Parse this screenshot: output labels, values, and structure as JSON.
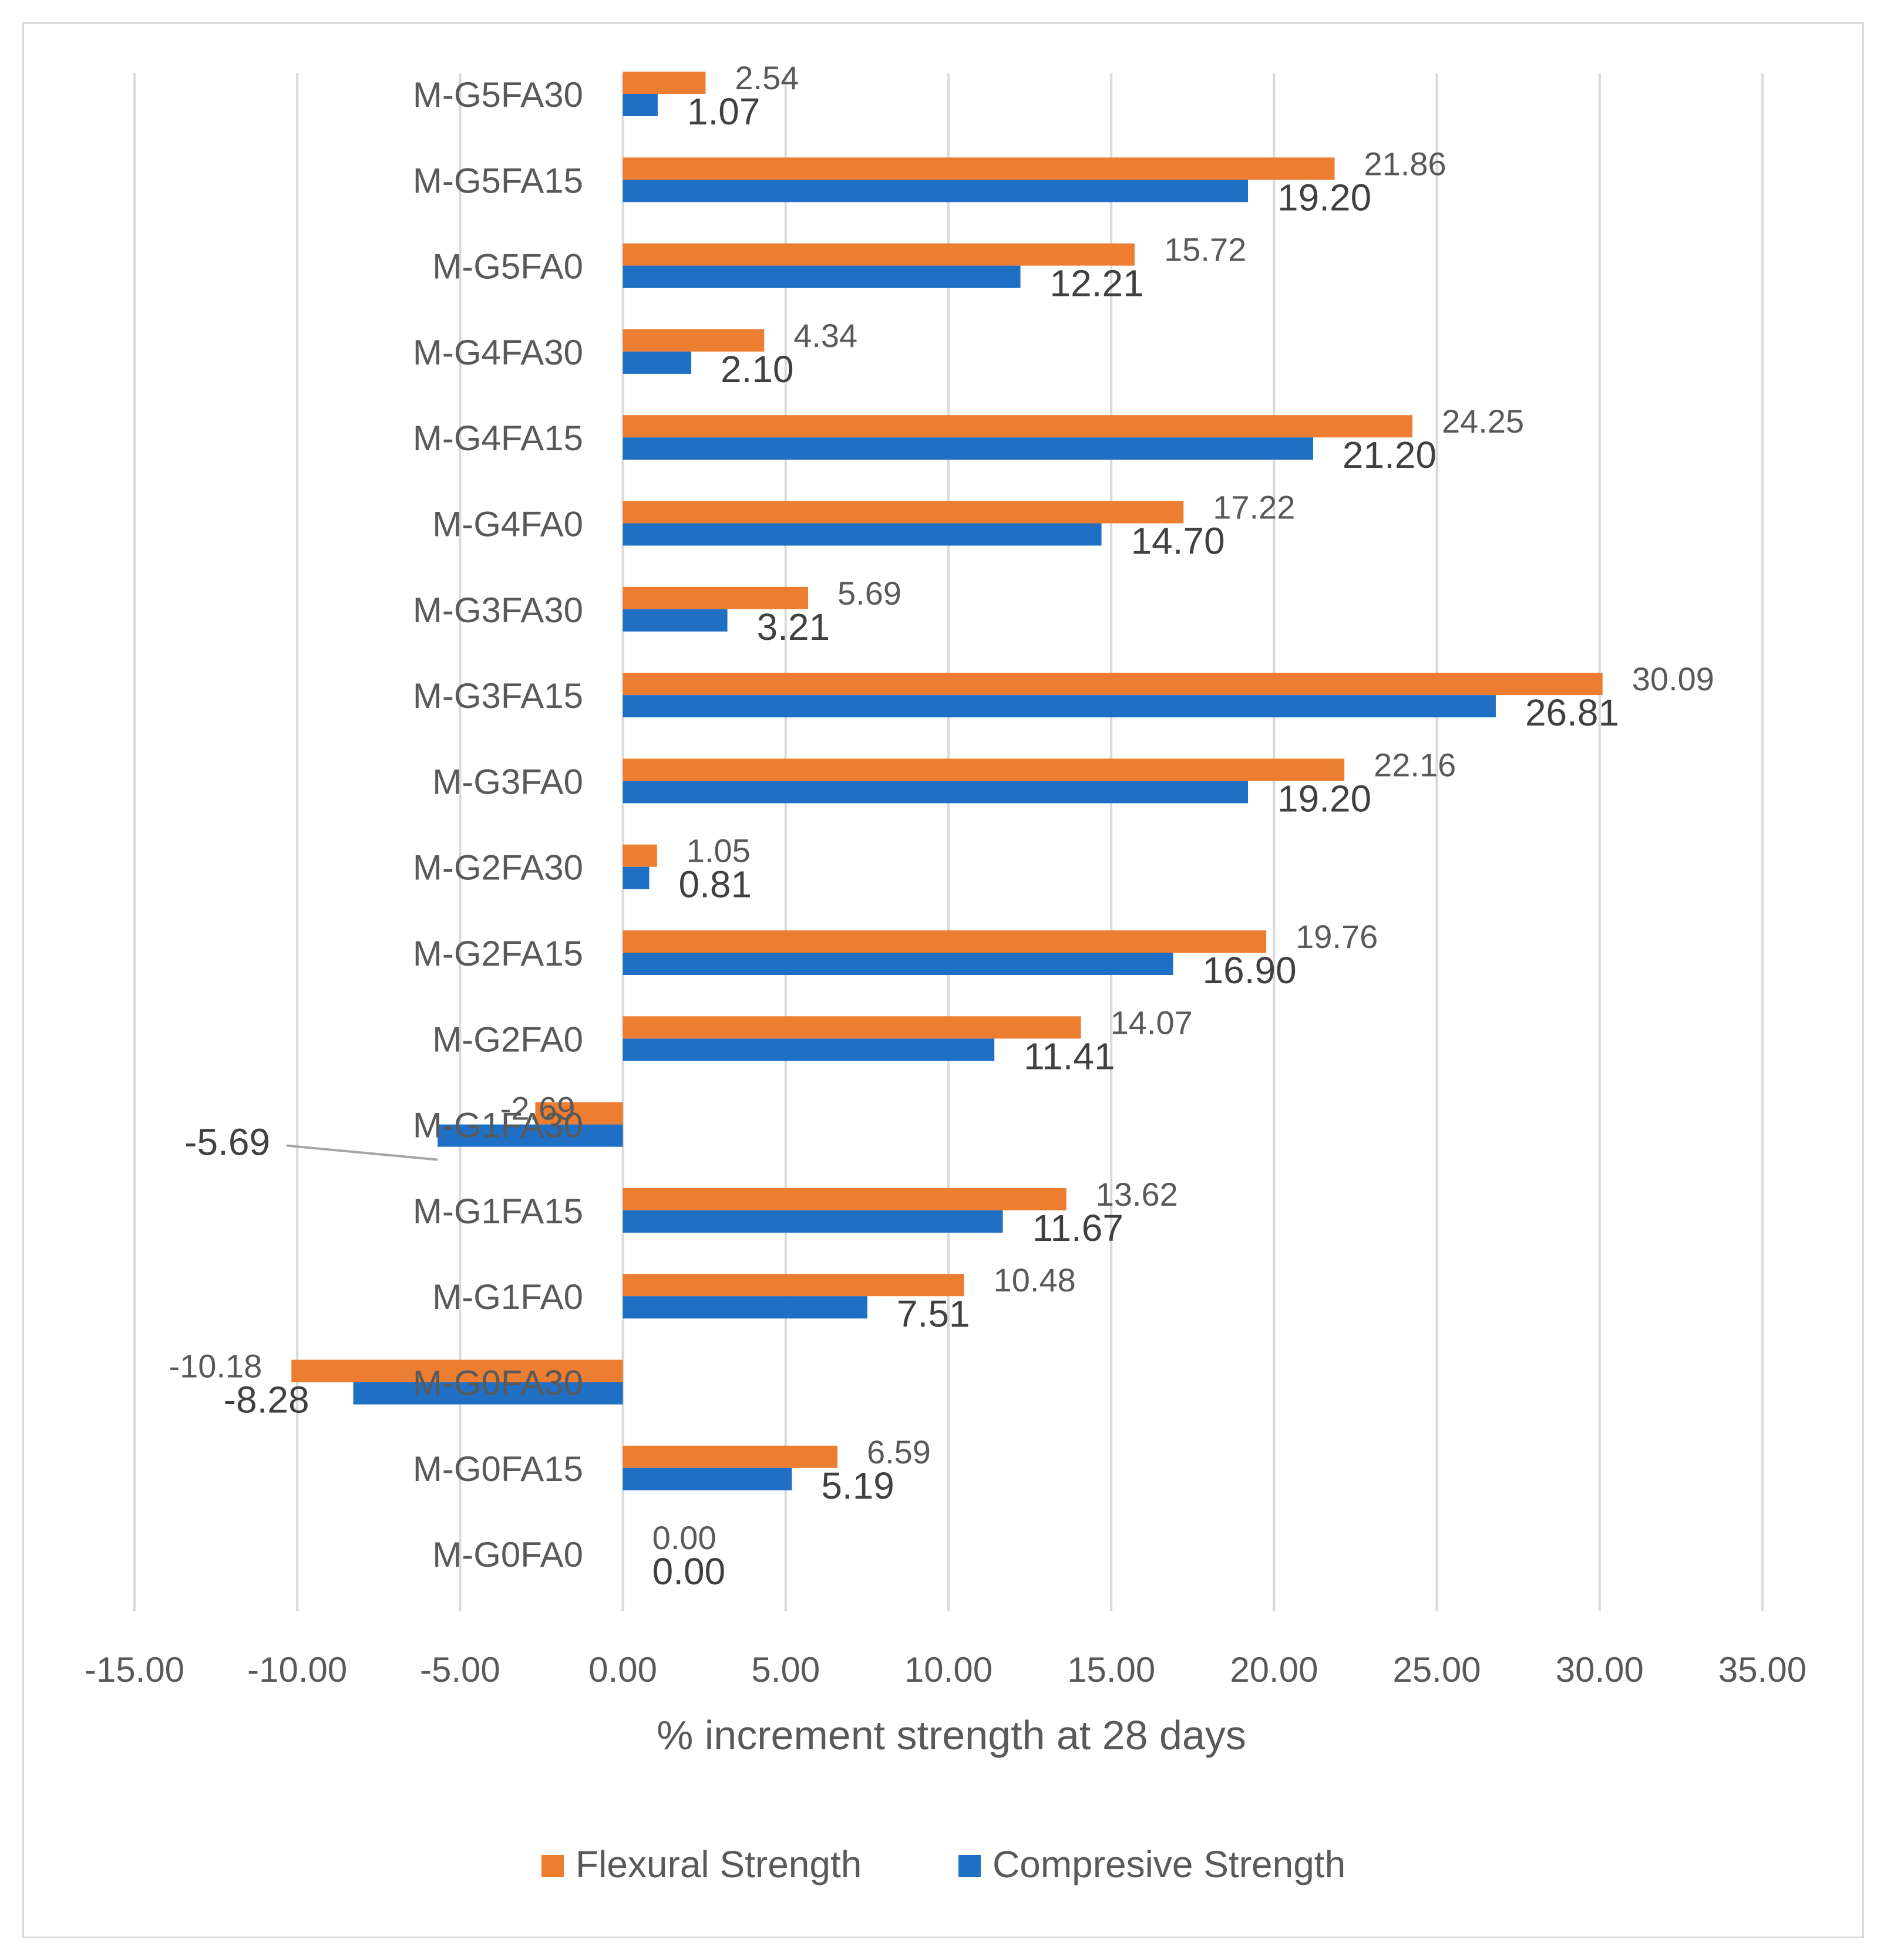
{
  "chart_data": {
    "type": "bar",
    "orientation": "horizontal",
    "title": "",
    "xlabel": "% increment strength at 28 days",
    "ylabel": "",
    "xlim": [
      -15,
      35
    ],
    "xticks": [
      -15,
      -10,
      -5,
      0,
      5,
      10,
      15,
      20,
      25,
      30,
      35
    ],
    "xtick_labels": [
      "-15.00",
      "-10.00",
      "-5.00",
      "0.00",
      "5.00",
      "10.00",
      "15.00",
      "20.00",
      "25.00",
      "30.00",
      "35.00"
    ],
    "grid": true,
    "legend_position": "bottom",
    "categories": [
      "M-G5FA30",
      "M-G5FA15",
      "M-G5FA0",
      "M-G4FA30",
      "M-G4FA15",
      "M-G4FA0",
      "M-G3FA30",
      "M-G3FA15",
      "M-G3FA0",
      "M-G2FA30",
      "M-G2FA15",
      "M-G2FA0",
      "M-G1FA30",
      "M-G1FA15",
      "M-G1FA0",
      "M-G0FA30",
      "M-G0FA15",
      "M-G0FA0"
    ],
    "series": [
      {
        "name": "Flexural Strength",
        "color": "#ED7D31",
        "values": [
          2.54,
          21.86,
          15.72,
          4.34,
          24.25,
          17.22,
          5.69,
          30.09,
          22.16,
          1.05,
          19.76,
          14.07,
          -2.69,
          13.62,
          10.48,
          -10.18,
          6.59,
          0.0
        ],
        "labels": [
          "2.54",
          "21.86",
          "15.72",
          "4.34",
          "24.25",
          "17.22",
          "5.69",
          "30.09",
          "22.16",
          "1.05",
          "19.76",
          "14.07",
          "-2.69",
          "13.62",
          "10.48",
          "-10.18",
          "6.59",
          "0.00"
        ]
      },
      {
        "name": "Compresive Strength",
        "color": "#1F6FC5",
        "values": [
          1.07,
          19.2,
          12.21,
          2.1,
          21.2,
          14.7,
          3.21,
          26.81,
          19.2,
          0.81,
          16.9,
          11.41,
          -5.69,
          11.67,
          7.51,
          -8.28,
          5.19,
          0.0
        ],
        "labels": [
          "1.07",
          "19.20",
          "12.21",
          "2.10",
          "21.20",
          "14.70",
          "3.21",
          "26.81",
          "19.20",
          "0.81",
          "16.90",
          "11.41",
          "-5.69",
          "11.67",
          "7.51",
          "-8.28",
          "5.19",
          "0.00"
        ]
      }
    ]
  }
}
